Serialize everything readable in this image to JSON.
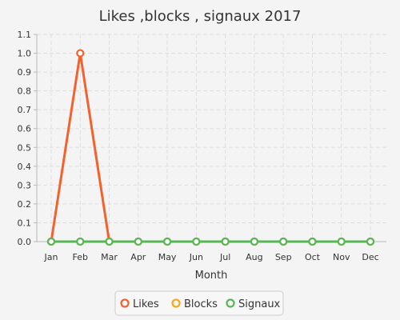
{
  "chart_data": {
    "type": "line",
    "title": "Likes ,blocks , signaux 2017",
    "xlabel": "Month",
    "ylabel": "",
    "categories": [
      "Jan",
      "Feb",
      "Mar",
      "Apr",
      "May",
      "Jun",
      "Jul",
      "Aug",
      "Sep",
      "Oct",
      "Nov",
      "Dec"
    ],
    "ylim": [
      0,
      1.1
    ],
    "yticks": [
      "0.0",
      "0.1",
      "0.2",
      "0.3",
      "0.4",
      "0.5",
      "0.6",
      "0.7",
      "0.8",
      "0.9",
      "1.0",
      "1.1"
    ],
    "grid": true,
    "legend_position": "bottom",
    "series": [
      {
        "name": "Likes",
        "color": "#f3622d",
        "values": [
          0,
          1,
          0,
          0,
          0,
          0,
          0,
          0,
          0,
          0,
          0,
          0
        ]
      },
      {
        "name": "Blocks",
        "color": "#fba71b",
        "values": [
          0,
          0,
          0,
          0,
          0,
          0,
          0,
          0,
          0,
          0,
          0,
          0
        ]
      },
      {
        "name": "Signaux",
        "color": "#57b757",
        "values": [
          0,
          0,
          0,
          0,
          0,
          0,
          0,
          0,
          0,
          0,
          0,
          0
        ]
      }
    ]
  }
}
